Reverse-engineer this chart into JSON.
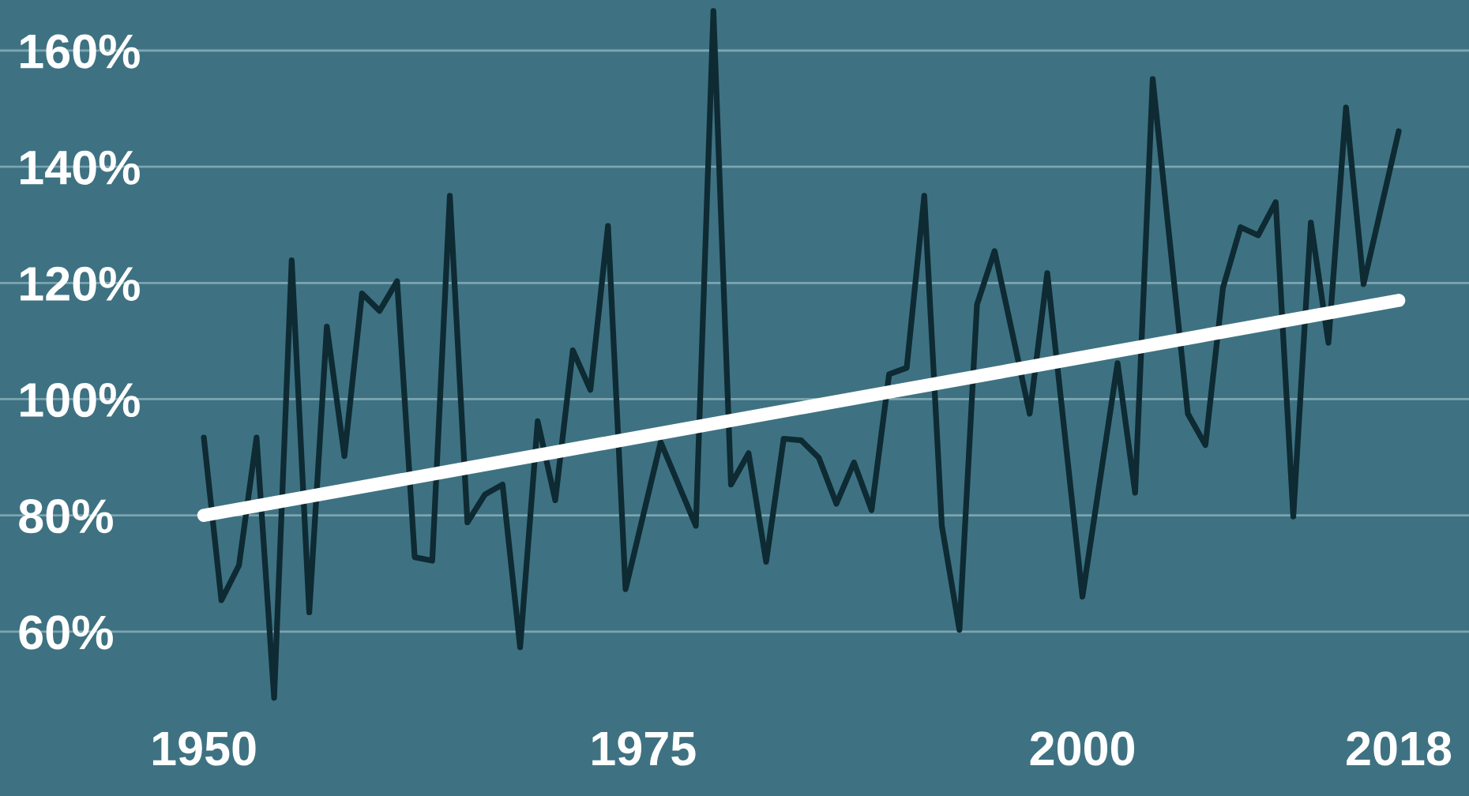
{
  "chart_data": {
    "type": "line",
    "series": [
      {
        "color": "#0e2a33",
        "x": [
          1950,
          1951,
          1952,
          1953,
          1954,
          1955,
          1956,
          1957,
          1958,
          1959,
          1960,
          1961,
          1962,
          1963,
          1964,
          1965,
          1966,
          1967,
          1968,
          1969,
          1970,
          1971,
          1972,
          1973,
          1974,
          1976,
          1978,
          1979,
          1980,
          1981,
          1982,
          1983,
          1984,
          1985,
          1986,
          1987,
          1988,
          1989,
          1990,
          1991,
          1992,
          1993,
          1994,
          1995,
          1997,
          1998,
          2000,
          2002,
          2003,
          2004,
          2006,
          2007,
          2008,
          2009,
          2010,
          2011,
          2012,
          2013,
          2014,
          2015,
          2016,
          2018
        ],
        "values": [
          93.4,
          65.4,
          71.4,
          93.4,
          48.6,
          123.9,
          63.3,
          112.5,
          90.2,
          118.2,
          115.2,
          120.3,
          72.8,
          72.2,
          135.0,
          78.8,
          83.6,
          85.3,
          57.3,
          96.2,
          82.6,
          108.4,
          101.6,
          129.8,
          67.3,
          92.6,
          78.2,
          166.8,
          85.3,
          90.7,
          72.0,
          93.2,
          92.9,
          89.9,
          82.0,
          89.1,
          80.9,
          104.3,
          105.4,
          135.0,
          78.2,
          60.3,
          116.3,
          125.5,
          97.5,
          121.7,
          66.0,
          106.2,
          83.9,
          155.1,
          97.5,
          92.1,
          119.2,
          129.6,
          128.2,
          133.9,
          79.8,
          130.4,
          109.7,
          150.2,
          119.8,
          146.1
        ]
      },
      {
        "color": "#ffffff",
        "x": [
          1950,
          2018
        ],
        "values": [
          80,
          117
        ]
      }
    ],
    "xlim": [
      1938.4,
      2022.0
    ],
    "ylim": [
      31.7,
      168.7
    ],
    "xticks": [
      1950,
      1975,
      2000,
      2018
    ],
    "yticks": [
      {
        "value": 60,
        "label": "60%"
      },
      {
        "value": 80,
        "label": "80%"
      },
      {
        "value": 100,
        "label": "100%"
      },
      {
        "value": 120,
        "label": "120%"
      },
      {
        "value": 140,
        "label": "140%"
      },
      {
        "value": 160,
        "label": "160%"
      }
    ],
    "grid": "y",
    "marker": "none",
    "line_style": "solid",
    "legend": false
  }
}
